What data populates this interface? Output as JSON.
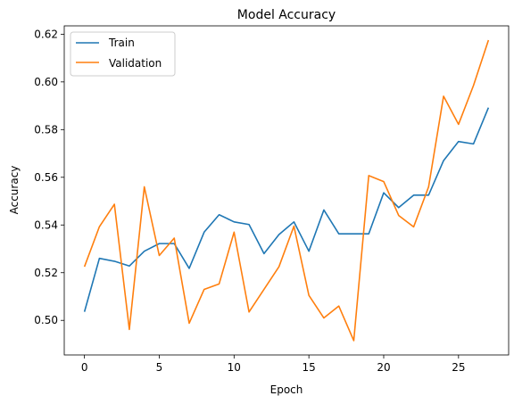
{
  "chart_data": {
    "type": "line",
    "title": "Model Accuracy",
    "xlabel": "Epoch",
    "ylabel": "Accuracy",
    "xlim": [
      -1.35,
      28.35
    ],
    "ylim": [
      0.4855,
      0.6235
    ],
    "x_ticks": [
      0,
      5,
      10,
      15,
      20,
      25
    ],
    "y_ticks": [
      0.5,
      0.52,
      0.54,
      0.56,
      0.58,
      0.6,
      0.62
    ],
    "y_tick_labels": [
      "0.50",
      "0.52",
      "0.54",
      "0.56",
      "0.58",
      "0.60",
      "0.62"
    ],
    "grid": false,
    "legend": "upper-left",
    "x": [
      0,
      1,
      2,
      3,
      4,
      5,
      6,
      7,
      8,
      9,
      10,
      11,
      12,
      13,
      14,
      15,
      16,
      17,
      18,
      19,
      20,
      21,
      22,
      23,
      24,
      25,
      26,
      27
    ],
    "series": [
      {
        "name": "Train",
        "color": "#1f77b4",
        "values": [
          0.5036,
          0.526,
          0.5248,
          0.5228,
          0.529,
          0.5322,
          0.5322,
          0.5218,
          0.537,
          0.5443,
          0.5413,
          0.5402,
          0.528,
          0.536,
          0.5413,
          0.529,
          0.5463,
          0.5363,
          0.5363,
          0.5363,
          0.5535,
          0.5473,
          0.5525,
          0.5525,
          0.567,
          0.575,
          0.574,
          0.5892
        ]
      },
      {
        "name": "Validation",
        "color": "#ff7f0e",
        "values": [
          0.5225,
          0.5393,
          0.5487,
          0.4962,
          0.556,
          0.5272,
          0.5345,
          0.4988,
          0.513,
          0.5153,
          0.537,
          0.5035,
          0.513,
          0.5225,
          0.5395,
          0.5105,
          0.501,
          0.506,
          0.4915,
          0.5607,
          0.5582,
          0.544,
          0.5392,
          0.556,
          0.594,
          0.5822,
          0.5985,
          0.6175
        ]
      }
    ]
  }
}
